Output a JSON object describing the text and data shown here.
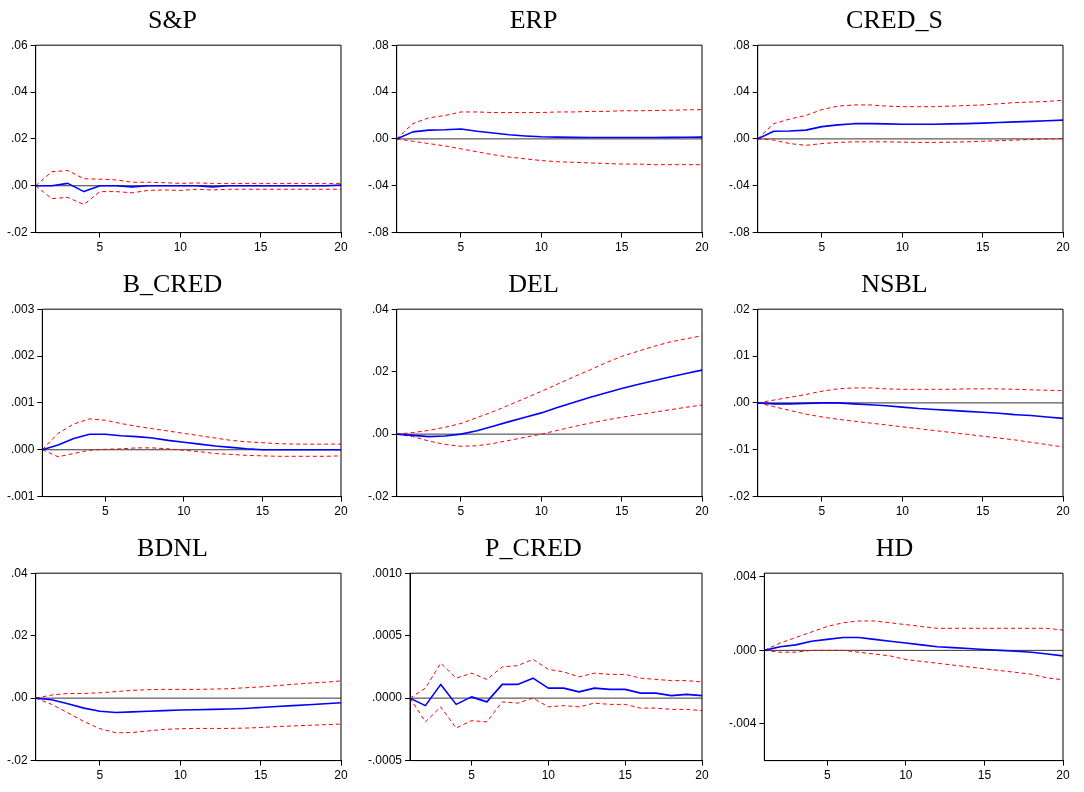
{
  "chart_data": [
    {
      "type": "line",
      "title": "S&P",
      "x": [
        1,
        2,
        3,
        4,
        5,
        6,
        7,
        8,
        9,
        10,
        11,
        12,
        13,
        14,
        15,
        16,
        17,
        18,
        19,
        20
      ],
      "xlim": [
        1,
        20
      ],
      "xticks": [
        5,
        10,
        15,
        20
      ],
      "ylim": [
        -0.02,
        0.06
      ],
      "yticks": [
        {
          "value": -0.02,
          "label": "-.02"
        },
        {
          "value": 0,
          "label": ".00"
        },
        {
          "value": 0.02,
          "label": ".02"
        },
        {
          "value": 0.04,
          "label": ".04"
        },
        {
          "value": 0.06,
          "label": ".06"
        }
      ],
      "grid": false,
      "legend": false,
      "marker": "none",
      "ref_lines": [
        {
          "axis": "y",
          "value": 0,
          "color": "#000000"
        }
      ],
      "series": [
        {
          "color": "#0000ff",
          "values": [
            0,
            0,
            0.001,
            -0.0025,
            0,
            0,
            -0.0005,
            0,
            0,
            0,
            0,
            -0.0005,
            0,
            0,
            0,
            0,
            0,
            0,
            0,
            0.0003
          ]
        },
        {
          "color": "#ff0000",
          "line_style": "dashed",
          "values": [
            0,
            0.006,
            0.0065,
            0.003,
            0.0028,
            0.0025,
            0.0015,
            0.0015,
            0.0013,
            0.001,
            0.0012,
            0.001,
            0.001,
            0.001,
            0.001,
            0.001,
            0.001,
            0.001,
            0.001,
            0.001
          ]
        },
        {
          "color": "#ff0000",
          "line_style": "dashed",
          "values": [
            0,
            -0.0055,
            -0.005,
            -0.008,
            -0.0025,
            -0.0025,
            -0.003,
            -0.002,
            -0.0018,
            -0.002,
            -0.0015,
            -0.0018,
            -0.0015,
            -0.0015,
            -0.0015,
            -0.0015,
            -0.0015,
            -0.0015,
            -0.0015,
            -0.0015
          ]
        }
      ]
    },
    {
      "type": "line",
      "title": "ERP",
      "x": [
        1,
        2,
        3,
        4,
        5,
        6,
        7,
        8,
        9,
        10,
        11,
        12,
        13,
        14,
        15,
        16,
        17,
        18,
        19,
        20
      ],
      "xlim": [
        1,
        20
      ],
      "xticks": [
        5,
        10,
        15,
        20
      ],
      "ylim": [
        -0.08,
        0.08
      ],
      "yticks": [
        {
          "value": -0.08,
          "label": "-.08"
        },
        {
          "value": -0.04,
          "label": "-.04"
        },
        {
          "value": 0,
          "label": ".00"
        },
        {
          "value": 0.04,
          "label": ".04"
        },
        {
          "value": 0.08,
          "label": ".08"
        }
      ],
      "grid": false,
      "legend": false,
      "marker": "none",
      "ref_lines": [
        {
          "axis": "y",
          "value": 0,
          "color": "#000000"
        }
      ],
      "series": [
        {
          "color": "#0000ff",
          "values": [
            0,
            0.006,
            0.0075,
            0.0078,
            0.0085,
            0.0065,
            0.005,
            0.0035,
            0.0025,
            0.0018,
            0.0015,
            0.0013,
            0.0012,
            0.0012,
            0.0012,
            0.0012,
            0.0012,
            0.0013,
            0.0014,
            0.0015
          ]
        },
        {
          "color": "#ff0000",
          "line_style": "dashed",
          "values": [
            0,
            0.013,
            0.018,
            0.02,
            0.023,
            0.023,
            0.0225,
            0.0225,
            0.0225,
            0.0225,
            0.023,
            0.023,
            0.0235,
            0.0235,
            0.024,
            0.024,
            0.0242,
            0.0245,
            0.0248,
            0.025
          ]
        },
        {
          "color": "#ff0000",
          "line_style": "dashed",
          "values": [
            0,
            -0.002,
            -0.004,
            -0.006,
            -0.0085,
            -0.011,
            -0.0135,
            -0.0155,
            -0.017,
            -0.0185,
            -0.0195,
            -0.02,
            -0.0205,
            -0.021,
            -0.0215,
            -0.0215,
            -0.022,
            -0.022,
            -0.022,
            -0.022
          ]
        }
      ]
    },
    {
      "type": "line",
      "title": "CRED_S",
      "x": [
        1,
        2,
        3,
        4,
        5,
        6,
        7,
        8,
        9,
        10,
        11,
        12,
        13,
        14,
        15,
        16,
        17,
        18,
        19,
        20
      ],
      "xlim": [
        1,
        20
      ],
      "xticks": [
        5,
        10,
        15,
        20
      ],
      "ylim": [
        -0.08,
        0.08
      ],
      "yticks": [
        {
          "value": -0.08,
          "label": "-.08"
        },
        {
          "value": -0.04,
          "label": "-.04"
        },
        {
          "value": 0,
          "label": ".00"
        },
        {
          "value": 0.04,
          "label": ".04"
        },
        {
          "value": 0.08,
          "label": ".08"
        }
      ],
      "grid": false,
      "legend": false,
      "marker": "none",
      "ref_lines": [
        {
          "axis": "y",
          "value": 0,
          "color": "#000000"
        }
      ],
      "series": [
        {
          "color": "#0000ff",
          "values": [
            0,
            0.0065,
            0.0068,
            0.0075,
            0.0105,
            0.012,
            0.013,
            0.013,
            0.0128,
            0.0125,
            0.0125,
            0.0125,
            0.0128,
            0.013,
            0.0135,
            0.014,
            0.0145,
            0.015,
            0.0155,
            0.016
          ]
        },
        {
          "color": "#ff0000",
          "line_style": "dashed",
          "values": [
            0,
            0.013,
            0.017,
            0.02,
            0.025,
            0.028,
            0.029,
            0.029,
            0.028,
            0.0275,
            0.0275,
            0.0275,
            0.028,
            0.0285,
            0.029,
            0.03,
            0.031,
            0.0315,
            0.032,
            0.033
          ]
        },
        {
          "color": "#ff0000",
          "line_style": "dashed",
          "values": [
            0,
            -0.001,
            -0.004,
            -0.0055,
            -0.004,
            -0.003,
            -0.0025,
            -0.0025,
            -0.0025,
            -0.0028,
            -0.003,
            -0.003,
            -0.0028,
            -0.0025,
            -0.002,
            -0.0015,
            -0.001,
            -0.0005,
            0,
            0.0003
          ]
        }
      ]
    },
    {
      "type": "line",
      "title": "B_CRED",
      "x": [
        1,
        2,
        3,
        4,
        5,
        6,
        7,
        8,
        9,
        10,
        11,
        12,
        13,
        14,
        15,
        16,
        17,
        18,
        19,
        20
      ],
      "xlim": [
        1,
        20
      ],
      "xticks": [
        5,
        10,
        15,
        20
      ],
      "ylim": [
        -0.001,
        0.003
      ],
      "yticks": [
        {
          "value": -0.001,
          "label": "-.001"
        },
        {
          "value": 0,
          "label": ".000"
        },
        {
          "value": 0.001,
          "label": ".001"
        },
        {
          "value": 0.002,
          "label": ".002"
        },
        {
          "value": 0.003,
          "label": ".003"
        }
      ],
      "grid": false,
      "legend": false,
      "marker": "none",
      "ref_lines": [
        {
          "axis": "y",
          "value": 0,
          "color": "#000000"
        }
      ],
      "series": [
        {
          "color": "#0000ff",
          "values": [
            0,
            0.0001,
            0.00024,
            0.00033,
            0.00033,
            0.0003,
            0.00028,
            0.00025,
            0.0002,
            0.00016,
            0.00012,
            8e-05,
            5e-05,
            2e-05,
            0,
            0,
            0,
            0,
            0,
            0
          ]
        },
        {
          "color": "#ff0000",
          "line_style": "dashed",
          "values": [
            0,
            0.00035,
            0.00055,
            0.00066,
            0.00063,
            0.00056,
            0.0005,
            0.00045,
            0.0004,
            0.00035,
            0.0003,
            0.00025,
            0.0002,
            0.00017,
            0.00015,
            0.00013,
            0.00012,
            0.00012,
            0.00012,
            0.00012
          ]
        },
        {
          "color": "#ff0000",
          "line_style": "dashed",
          "values": [
            0,
            -0.00015,
            -8e-05,
            -1e-05,
            1e-05,
            2e-05,
            4e-05,
            4e-05,
            2e-05,
            -1e-05,
            -4e-05,
            -8e-05,
            -0.0001,
            -0.00012,
            -0.00013,
            -0.00014,
            -0.00014,
            -0.00014,
            -0.00014,
            -0.00013
          ]
        }
      ]
    },
    {
      "type": "line",
      "title": "DEL",
      "x": [
        1,
        2,
        3,
        4,
        5,
        6,
        7,
        8,
        9,
        10,
        11,
        12,
        13,
        14,
        15,
        16,
        17,
        18,
        19,
        20
      ],
      "xlim": [
        1,
        20
      ],
      "xticks": [
        5,
        10,
        15,
        20
      ],
      "ylim": [
        -0.02,
        0.04
      ],
      "yticks": [
        {
          "value": -0.02,
          "label": "-.02"
        },
        {
          "value": 0,
          "label": ".00"
        },
        {
          "value": 0.02,
          "label": ".02"
        },
        {
          "value": 0.04,
          "label": ".04"
        }
      ],
      "grid": false,
      "legend": false,
      "marker": "none",
      "ref_lines": [
        {
          "axis": "y",
          "value": 0,
          "color": "#000000"
        }
      ],
      "series": [
        {
          "color": "#0000ff",
          "values": [
            0,
            -0.0004,
            -0.0008,
            -0.0006,
            0,
            0.0011,
            0.0025,
            0.004,
            0.0054,
            0.0068,
            0.0085,
            0.0101,
            0.0117,
            0.0132,
            0.0146,
            0.0159,
            0.0171,
            0.0183,
            0.0194,
            0.0205
          ]
        },
        {
          "color": "#ff0000",
          "line_style": "dashed",
          "values": [
            0,
            0.0005,
            0.0012,
            0.0022,
            0.0034,
            0.0053,
            0.0072,
            0.0093,
            0.0115,
            0.0137,
            0.016,
            0.0183,
            0.0205,
            0.0228,
            0.0249,
            0.0265,
            0.0281,
            0.0295,
            0.0305,
            0.0315
          ]
        },
        {
          "color": "#ff0000",
          "line_style": "dashed",
          "values": [
            0,
            -0.0008,
            -0.0022,
            -0.0033,
            -0.0039,
            -0.0037,
            -0.003,
            -0.002,
            -0.001,
            0,
            0.0012,
            0.0024,
            0.0035,
            0.0045,
            0.0054,
            0.0062,
            0.007,
            0.0078,
            0.0086,
            0.0093
          ]
        }
      ]
    },
    {
      "type": "line",
      "title": "NSBL",
      "x": [
        1,
        2,
        3,
        4,
        5,
        6,
        7,
        8,
        9,
        10,
        11,
        12,
        13,
        14,
        15,
        16,
        17,
        18,
        19,
        20
      ],
      "xlim": [
        1,
        20
      ],
      "xticks": [
        5,
        10,
        15,
        20
      ],
      "ylim": [
        -0.02,
        0.02
      ],
      "yticks": [
        {
          "value": -0.02,
          "label": "-.02"
        },
        {
          "value": -0.01,
          "label": "-.01"
        },
        {
          "value": 0,
          "label": ".00"
        },
        {
          "value": 0.01,
          "label": ".01"
        },
        {
          "value": 0.02,
          "label": ".02"
        }
      ],
      "grid": false,
      "legend": false,
      "marker": "none",
      "ref_lines": [
        {
          "axis": "y",
          "value": 0,
          "color": "#000000"
        }
      ],
      "series": [
        {
          "color": "#0000ff",
          "values": [
            0,
            -0.0002,
            -0.0002,
            -0.0001,
            0,
            0,
            -0.0002,
            -0.0004,
            -0.0006,
            -0.0009,
            -0.0012,
            -0.0014,
            -0.0016,
            -0.0018,
            -0.002,
            -0.0022,
            -0.0025,
            -0.0027,
            -0.003,
            -0.0033
          ]
        },
        {
          "color": "#ff0000",
          "line_style": "dashed",
          "values": [
            0,
            0.0006,
            0.0012,
            0.0018,
            0.0025,
            0.003,
            0.0032,
            0.0032,
            0.003,
            0.0029,
            0.0029,
            0.0029,
            0.0029,
            0.003,
            0.003,
            0.003,
            0.0029,
            0.0028,
            0.0027,
            0.0026
          ]
        },
        {
          "color": "#ff0000",
          "line_style": "dashed",
          "values": [
            0,
            -0.0008,
            -0.0016,
            -0.0024,
            -0.003,
            -0.0035,
            -0.0039,
            -0.0043,
            -0.0047,
            -0.0051,
            -0.0055,
            -0.0059,
            -0.0063,
            -0.0067,
            -0.0071,
            -0.0075,
            -0.0079,
            -0.0084,
            -0.0089,
            -0.0094
          ]
        }
      ]
    },
    {
      "type": "line",
      "title": "BDNL",
      "x": [
        1,
        2,
        3,
        4,
        5,
        6,
        7,
        8,
        9,
        10,
        11,
        12,
        13,
        14,
        15,
        16,
        17,
        18,
        19,
        20
      ],
      "xlim": [
        1,
        20
      ],
      "xticks": [
        5,
        10,
        15,
        20
      ],
      "ylim": [
        -0.02,
        0.04
      ],
      "yticks": [
        {
          "value": -0.02,
          "label": "-.02"
        },
        {
          "value": 0,
          "label": ".00"
        },
        {
          "value": 0.02,
          "label": ".02"
        },
        {
          "value": 0.04,
          "label": ".04"
        }
      ],
      "grid": false,
      "legend": false,
      "marker": "none",
      "ref_lines": [
        {
          "axis": "y",
          "value": 0,
          "color": "#000000"
        }
      ],
      "series": [
        {
          "color": "#0000ff",
          "values": [
            0,
            -0.0005,
            -0.0018,
            -0.0032,
            -0.0042,
            -0.0046,
            -0.0044,
            -0.0042,
            -0.004,
            -0.0038,
            -0.0037,
            -0.0036,
            -0.0035,
            -0.0033,
            -0.003,
            -0.0027,
            -0.0024,
            -0.0021,
            -0.0018,
            -0.0015
          ]
        },
        {
          "color": "#ff0000",
          "line_style": "dashed",
          "values": [
            0,
            0.001,
            0.0015,
            0.0015,
            0.0017,
            0.0021,
            0.0025,
            0.0027,
            0.0028,
            0.0028,
            0.0028,
            0.0029,
            0.003,
            0.0033,
            0.0036,
            0.004,
            0.0044,
            0.0048,
            0.0051,
            0.0055
          ]
        },
        {
          "color": "#ff0000",
          "line_style": "dashed",
          "values": [
            0,
            -0.002,
            -0.0047,
            -0.0075,
            -0.0098,
            -0.0111,
            -0.011,
            -0.0105,
            -0.01,
            -0.0098,
            -0.0097,
            -0.0097,
            -0.0097,
            -0.0096,
            -0.0094,
            -0.0091,
            -0.0089,
            -0.0087,
            -0.0085,
            -0.0083
          ]
        }
      ]
    },
    {
      "type": "line",
      "title": "P_CRED",
      "x": [
        1,
        2,
        3,
        4,
        5,
        6,
        7,
        8,
        9,
        10,
        11,
        12,
        13,
        14,
        15,
        16,
        17,
        18,
        19,
        20
      ],
      "xlim": [
        1,
        20
      ],
      "xticks": [
        5,
        10,
        15,
        20
      ],
      "ylim": [
        -0.0005,
        0.001
      ],
      "yticks": [
        {
          "value": -0.0005,
          "label": "-.0005"
        },
        {
          "value": 0,
          "label": ".0000"
        },
        {
          "value": 0.0005,
          "label": ".0005"
        },
        {
          "value": 0.001,
          "label": ".0010"
        }
      ],
      "grid": false,
      "legend": false,
      "marker": "none",
      "ref_lines": [
        {
          "axis": "y",
          "value": 0,
          "color": "#000000"
        }
      ],
      "series": [
        {
          "color": "#0000ff",
          "values": [
            0,
            -6e-05,
            0.00011,
            -5e-05,
            1e-05,
            -3e-05,
            0.00011,
            0.00011,
            0.00016,
            8e-05,
            8e-05,
            5e-05,
            8e-05,
            7e-05,
            7e-05,
            4e-05,
            4e-05,
            2e-05,
            3e-05,
            2e-05
          ]
        },
        {
          "color": "#ff0000",
          "line_style": "dashed",
          "values": [
            0,
            8e-05,
            0.00028,
            0.00016,
            0.0002,
            0.00015,
            0.00025,
            0.00026,
            0.00031,
            0.00023,
            0.00021,
            0.00017,
            0.0002,
            0.00019,
            0.00019,
            0.00016,
            0.00015,
            0.00014,
            0.00014,
            0.00013
          ]
        },
        {
          "color": "#ff0000",
          "line_style": "dashed",
          "values": [
            0,
            -0.00019,
            -7e-05,
            -0.00024,
            -0.00018,
            -0.00019,
            -3e-05,
            -4e-05,
            0,
            -7e-05,
            -6e-05,
            -7e-05,
            -4e-05,
            -5e-05,
            -5e-05,
            -8e-05,
            -8e-05,
            -9e-05,
            -9e-05,
            -0.0001
          ]
        }
      ]
    },
    {
      "type": "line",
      "title": "HD",
      "x": [
        1,
        2,
        3,
        4,
        5,
        6,
        7,
        8,
        9,
        10,
        11,
        12,
        13,
        14,
        15,
        16,
        17,
        18,
        19,
        20
      ],
      "xlim": [
        1,
        20
      ],
      "xticks": [
        5,
        10,
        15,
        20
      ],
      "ylim": [
        -0.006,
        0.0042
      ],
      "yticks": [
        {
          "value": -0.004,
          "label": "-.004"
        },
        {
          "value": 0,
          "label": ".000"
        },
        {
          "value": 0.004,
          "label": ".004"
        }
      ],
      "grid": false,
      "legend": false,
      "marker": "none",
      "ref_lines": [
        {
          "axis": "y",
          "value": 0,
          "color": "#000000"
        }
      ],
      "series": [
        {
          "color": "#0000ff",
          "values": [
            0,
            0.0002,
            0.0003,
            0.0005,
            0.0006,
            0.0007,
            0.0007,
            0.0006,
            0.0005,
            0.0004,
            0.0003,
            0.0002,
            0.00015,
            0.0001,
            5e-05,
            0,
            -5e-05,
            -0.0001,
            -0.0002,
            -0.0003
          ]
        },
        {
          "color": "#ff0000",
          "line_style": "dashed",
          "values": [
            0,
            0.0004,
            0.0007,
            0.001,
            0.0013,
            0.0015,
            0.0016,
            0.0016,
            0.0015,
            0.0014,
            0.0013,
            0.0012,
            0.0012,
            0.0012,
            0.0012,
            0.0012,
            0.0012,
            0.0012,
            0.0012,
            0.0011
          ]
        },
        {
          "color": "#ff0000",
          "line_style": "dashed",
          "values": [
            0,
            -0.0001,
            -0.0001,
            0,
            0,
            0,
            -0.0001,
            -0.0002,
            -0.0003,
            -0.0005,
            -0.0006,
            -0.0007,
            -0.0008,
            -0.0009,
            -0.001,
            -0.0011,
            -0.0012,
            -0.0013,
            -0.0015,
            -0.0016
          ]
        }
      ]
    }
  ]
}
